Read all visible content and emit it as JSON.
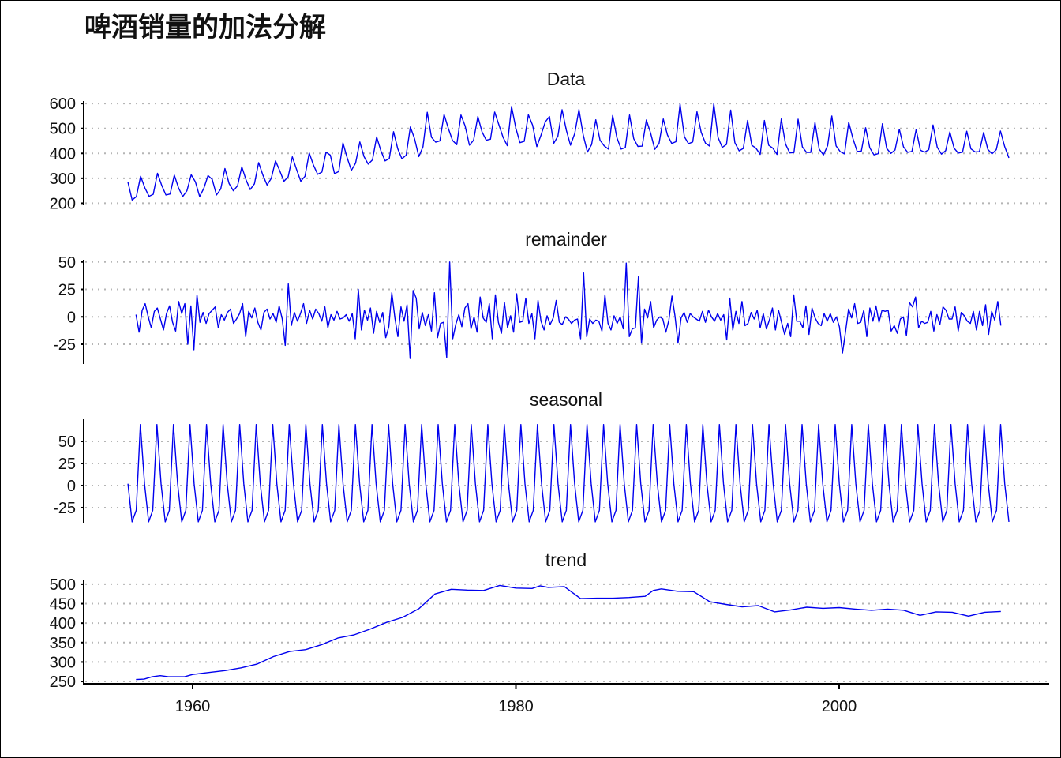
{
  "chart_data": {
    "type": "line",
    "title": "啤酒销量的加法分解",
    "x_ticks": [
      1960,
      1980,
      2000
    ],
    "xlim": [
      1953,
      2011.5
    ],
    "line_color": "#0000ee",
    "grid": true,
    "panels": [
      {
        "name": "Data",
        "ylim": [
          195,
          610
        ],
        "y_ticks": [
          200,
          300,
          400,
          500,
          600
        ],
        "values": [
          284,
          213,
          227,
          308,
          262,
          228,
          236,
          320,
          272,
          233,
          237,
          313,
          261,
          227,
          250,
          314,
          286,
          227,
          260,
          311,
          295,
          233,
          257,
          339,
          279,
          250,
          270,
          346,
          294,
          255,
          278,
          363,
          313,
          273,
          300,
          370,
          331,
          288,
          306,
          386,
          335,
          288,
          308,
          402,
          353,
          316,
          325,
          405,
          393,
          319,
          327,
          442,
          383,
          332,
          361,
          446,
          387,
          357,
          374,
          466,
          410,
          370,
          379,
          487,
          419,
          378,
          393,
          506,
          458,
          387,
          427,
          565,
          465,
          445,
          450,
          556,
          500,
          452,
          435,
          554,
          510,
          433,
          453,
          548,
          486,
          453,
          457,
          566,
          515,
          464,
          431,
          588,
          503,
          443,
          448,
          555,
          513,
          427,
          473,
          526,
          548,
          440,
          469,
          575,
          493,
          433,
          480,
          576,
          475,
          405,
          435,
          535,
          453,
          430,
          417,
          552,
          464,
          417,
          423,
          554,
          459,
          428,
          429,
          534,
          481,
          416,
          440,
          538,
          474,
          440,
          447,
          598,
          467,
          439,
          446,
          567,
          485,
          441,
          429,
          599,
          464,
          424,
          436,
          574,
          443,
          410,
          420,
          532,
          433,
          421,
          396,
          532,
          433,
          421,
          396,
          538,
          438,
          402,
          403,
          537,
          426,
          404,
          404,
          524,
          417,
          394,
          431,
          550,
          430,
          407,
          398,
          525,
          460,
          408,
          409,
          503,
          422,
          394,
          399,
          519,
          420,
          400,
          414,
          497,
          426,
          404,
          408,
          496,
          413,
          405,
          415,
          514,
          425,
          397,
          411,
          486,
          421,
          401,
          405,
          489,
          418,
          406,
          407,
          484,
          416,
          398,
          415,
          490,
          428,
          382
        ]
      },
      {
        "name": "remainder",
        "ylim": [
          -43,
          52
        ],
        "y_ticks": [
          -25,
          0,
          25,
          50
        ],
        "values": [
          2,
          -14,
          6,
          12,
          0,
          -10,
          5,
          8,
          -2,
          -12,
          3,
          10,
          -5,
          -13,
          14,
          3,
          12,
          -25,
          10,
          -30,
          20,
          -5,
          4,
          -6,
          3,
          6,
          9,
          -10,
          2,
          -3,
          4,
          7,
          -6,
          -2,
          3,
          12,
          -18,
          5,
          -1,
          8,
          -5,
          -12,
          4,
          7,
          -2,
          3,
          -5,
          10,
          -2,
          -26,
          30,
          -8,
          4,
          -4,
          3,
          12,
          -6,
          6,
          -2,
          7,
          3,
          -4,
          9,
          -10,
          2,
          -3,
          5,
          -2,
          -1,
          2,
          -4,
          3,
          -20,
          25,
          -12,
          6,
          -3,
          8,
          -15,
          5,
          -5,
          4,
          -19,
          -9,
          22,
          -1,
          -18,
          9,
          -4,
          11,
          -38,
          24,
          17,
          -11,
          4,
          -8,
          2,
          -13,
          22,
          -19,
          -6,
          -5,
          -37,
          50,
          -20,
          -7,
          2,
          -9,
          8,
          12,
          -11,
          0,
          -14,
          18,
          -1,
          -5,
          12,
          -20,
          20,
          -5,
          -15,
          13,
          -10,
          1,
          -14,
          21,
          -5,
          -4,
          17,
          -6,
          3,
          -20,
          15,
          -4,
          -12,
          1,
          -7,
          -1,
          15,
          -5,
          -7,
          0,
          -2,
          -6,
          -3,
          -2,
          -20,
          40,
          -18,
          -2,
          -6,
          -3,
          -4,
          -13,
          20,
          -6,
          -12,
          1,
          -6,
          0,
          -11,
          49,
          -18,
          -11,
          -10,
          37,
          -24,
          7,
          -1,
          14,
          -10,
          -3,
          0,
          -2,
          -14,
          -3,
          19,
          1,
          -24,
          -1,
          4,
          -5,
          3,
          0,
          -2,
          -4,
          5,
          -5,
          6,
          0,
          -4,
          3,
          -3,
          2,
          -21,
          17,
          -12,
          5,
          -6,
          14,
          -8,
          -6,
          4,
          -2,
          6,
          -10,
          3,
          -11,
          -3,
          8,
          -12,
          6,
          -5,
          -16,
          -6,
          -18,
          20,
          -4,
          -4,
          -10,
          10,
          -16,
          8,
          -1,
          -6,
          -8,
          3,
          -4,
          3,
          -5,
          0,
          -9,
          -33,
          -14,
          7,
          -1,
          12,
          -6,
          -5,
          6,
          -18,
          8,
          -4,
          10,
          -5,
          6,
          5,
          6,
          -13,
          -8,
          -15,
          -2,
          0,
          -17,
          13,
          9,
          18,
          -10,
          -4,
          -6,
          -5,
          5,
          -13,
          2,
          -7,
          9,
          6,
          -2,
          -2,
          9,
          -13,
          4,
          1,
          -4,
          -6,
          5,
          -12,
          5,
          -8,
          11,
          -16,
          5,
          -3,
          14,
          -8
        ]
      },
      {
        "name": "seasonal",
        "ylim": [
          -42,
          75
        ],
        "y_ticks": [
          -25,
          0,
          25,
          50
        ],
        "values": [
          2,
          -41,
          -28,
          69,
          2,
          -41,
          -28,
          69,
          2,
          -41,
          -28,
          69,
          2,
          -41,
          -28,
          69,
          2,
          -41,
          -28,
          69,
          2,
          -41,
          -28,
          69,
          2,
          -41,
          -28,
          69,
          2,
          -41,
          -28,
          69,
          2,
          -41,
          -28,
          69,
          2,
          -41,
          -28,
          69,
          2,
          -41,
          -28,
          69,
          2,
          -41,
          -28,
          69,
          2,
          -41,
          -28,
          69,
          2,
          -41,
          -28,
          69,
          2,
          -41,
          -28,
          69,
          2,
          -41,
          -28,
          69,
          2,
          -41,
          -28,
          69,
          2,
          -41,
          -28,
          69,
          2,
          -41,
          -28,
          69,
          2,
          -41,
          -28,
          69,
          2,
          -41,
          -28,
          69,
          2,
          -41,
          -28,
          69,
          2,
          -41,
          -28,
          69,
          2,
          -41,
          -28,
          69,
          2,
          -41,
          -28,
          69,
          2,
          -41,
          -28,
          69,
          2,
          -41,
          -28,
          69,
          2,
          -41,
          -28,
          69,
          2,
          -41,
          -28,
          69,
          2,
          -41,
          -28,
          69,
          2,
          -41,
          -28,
          69,
          2,
          -41,
          -28,
          69,
          2,
          -41,
          -28,
          69,
          2,
          -41,
          -28,
          69,
          2,
          -41,
          -28,
          69,
          2,
          -41,
          -28,
          69,
          2,
          -41,
          -28,
          69,
          2,
          -41,
          -28,
          69,
          2,
          -41,
          -28,
          69,
          2,
          -41,
          -28,
          69,
          2,
          -41,
          -28,
          69,
          2,
          -41,
          -28,
          69,
          2,
          -41,
          -28,
          69,
          2,
          -41,
          -28,
          69,
          2,
          -41,
          -28,
          69,
          2,
          -41,
          -28,
          69,
          2,
          -41,
          -28,
          69,
          2,
          -41,
          -28,
          69,
          2,
          -41,
          -28,
          69,
          2,
          -41,
          -28,
          69,
          2,
          -41,
          -28,
          69,
          2,
          -41,
          -28,
          69,
          2,
          -41,
          -28,
          69,
          2,
          -41
        ]
      },
      {
        "name": "trend",
        "ylim": [
          244,
          512
        ],
        "y_ticks": [
          250,
          300,
          350,
          400,
          450,
          500
        ],
        "series": [
          {
            "x": [
              1956.5,
              1957,
              1957.5,
              1958,
              1958.5,
              1959,
              1959.5,
              1960,
              1961,
              1962,
              1963,
              1964,
              1965,
              1966,
              1967,
              1968,
              1969,
              1970,
              1971,
              1972,
              1973,
              1974,
              1975,
              1976,
              1977,
              1978,
              1979,
              1980,
              1981,
              1981.5,
              1982,
              1983,
              1984,
              1985,
              1986,
              1987,
              1988,
              1988.5,
              1989,
              1990,
              1991,
              1992,
              1993,
              1994,
              1995,
              1996,
              1997,
              1998,
              1999,
              2000,
              2001,
              2002,
              2003,
              2004,
              2005,
              2006,
              2007,
              2008,
              2009,
              2010
            ],
            "y": [
              255,
              256,
              262,
              265,
              262,
              262,
              262,
              268,
              273,
              278,
              285,
              295,
              314,
              327,
              332,
              345,
              362,
              370,
              385,
              402,
              415,
              437,
              475,
              487,
              485,
              484,
              497,
              490,
              489,
              496,
              492,
              494,
              463,
              464,
              464,
              466,
              469,
              484,
              488,
              482,
              481,
              455,
              448,
              442,
              445,
              429,
              434,
              441,
              438,
              440,
              436,
              433,
              436,
              433,
              420,
              429,
              428,
              418,
              428,
              430
            ]
          }
        ]
      }
    ]
  }
}
